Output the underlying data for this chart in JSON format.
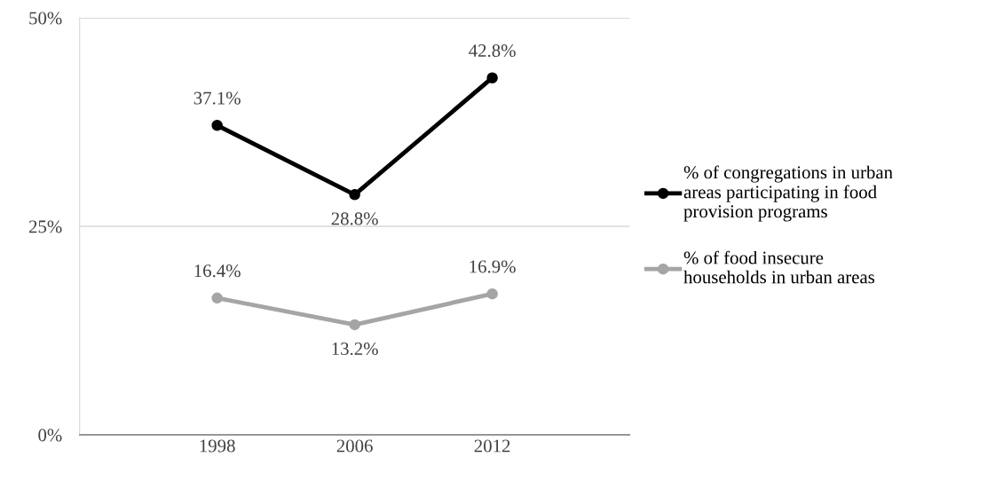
{
  "chart_data": {
    "type": "line",
    "categories": [
      "1998",
      "2006",
      "2012"
    ],
    "series": [
      {
        "name": "% of congregations in urban\nareas participating in food\nprovision programs",
        "color": "#000000",
        "values": [
          37.1,
          28.8,
          42.8
        ],
        "value_labels": [
          "37.1%",
          "28.8%",
          "42.8%"
        ]
      },
      {
        "name": "% of food insecure\nhouseholds in urban areas",
        "color": "#a5a5a5",
        "values": [
          16.4,
          13.2,
          16.9
        ],
        "value_labels": [
          "16.4%",
          "13.2%",
          "16.9%"
        ]
      }
    ],
    "ylim": [
      0,
      50
    ],
    "yticks": [
      {
        "value": 0,
        "label": "0%"
      },
      {
        "value": 25,
        "label": "25%"
      },
      {
        "value": 50,
        "label": "50%"
      }
    ],
    "grid": "y",
    "legend": "right",
    "marker": "circle",
    "line_style": "solid"
  }
}
